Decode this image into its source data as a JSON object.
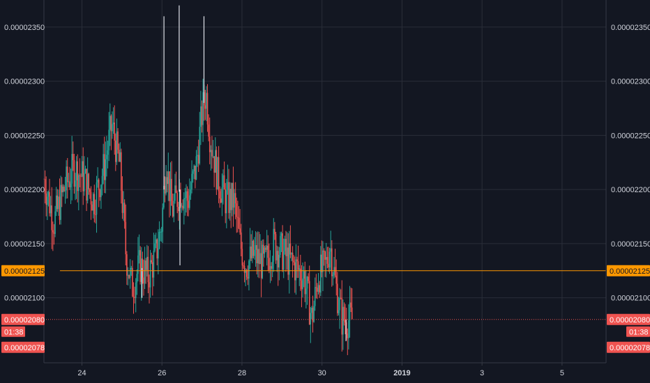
{
  "chart_data": {
    "type": "candlestick",
    "title": "",
    "xlabel": "",
    "ylabel": "",
    "ylim": [
      2.04e-05,
      2.375e-05
    ],
    "y_ticks": [
      "0.00002350",
      "0.00002300",
      "0.00002250",
      "0.00002200",
      "0.00002150",
      "0.00002100"
    ],
    "y_tick_values": [
      2.35e-05,
      2.3e-05,
      2.25e-05,
      2.2e-05,
      2.15e-05,
      2.1e-05
    ],
    "x_ticks": [
      {
        "label": "24",
        "day": 24,
        "bold": false
      },
      {
        "label": "26",
        "day": 26,
        "bold": false
      },
      {
        "label": "28",
        "day": 28,
        "bold": false
      },
      {
        "label": "30",
        "day": 30,
        "bold": false
      },
      {
        "label": "2019",
        "day": 32,
        "bold": true
      },
      {
        "label": "3",
        "day": 34,
        "bold": false
      },
      {
        "label": "5",
        "day": 36,
        "bold": false
      }
    ],
    "xlim_days": [
      23.05,
      37.1
    ],
    "grid": true,
    "colors": {
      "up": "#26a69a",
      "down": "#ef5350",
      "grid": "#2a2e39",
      "hline": "#ff9800",
      "current": "#ef5350"
    },
    "horizontal_line": {
      "value": 2.125e-05,
      "label": "0.00002125",
      "from_day": 23.45
    },
    "current_price": {
      "value": 2.08e-05,
      "label": "0.00002080",
      "countdown": "01:38"
    },
    "low_price": {
      "value": 2.078e-05,
      "label": "0.00002078"
    },
    "price_path": [
      [
        23.05,
        2.21e-05
      ],
      [
        23.3,
        2.17e-05
      ],
      [
        23.55,
        2.2e-05
      ],
      [
        23.8,
        2.22e-05
      ],
      [
        24.05,
        2.21e-05
      ],
      [
        24.3,
        2.19e-05
      ],
      [
        24.55,
        2.22e-05
      ],
      [
        24.75,
        2.26e-05
      ],
      [
        24.95,
        2.22e-05
      ],
      [
        25.1,
        2.14e-05
      ],
      [
        25.25,
        2.11e-05
      ],
      [
        25.45,
        2.13e-05
      ],
      [
        25.65,
        2.12e-05
      ],
      [
        25.85,
        2.14e-05
      ],
      [
        26.0,
        2.17e-05
      ],
      [
        26.1,
        2.23e-05
      ],
      [
        26.25,
        2.18e-05
      ],
      [
        26.45,
        2.2e-05
      ],
      [
        26.65,
        2.19e-05
      ],
      [
        26.85,
        2.22e-05
      ],
      [
        27.0,
        2.27e-05
      ],
      [
        27.1,
        2.29e-05
      ],
      [
        27.2,
        2.25e-05
      ],
      [
        27.4,
        2.21e-05
      ],
      [
        27.6,
        2.19e-05
      ],
      [
        27.8,
        2.19e-05
      ],
      [
        27.95,
        2.15e-05
      ],
      [
        28.1,
        2.13e-05
      ],
      [
        28.3,
        2.14e-05
      ],
      [
        28.55,
        2.13e-05
      ],
      [
        28.8,
        2.15e-05
      ],
      [
        29.05,
        2.14e-05
      ],
      [
        29.3,
        2.13e-05
      ],
      [
        29.55,
        2.12e-05
      ],
      [
        29.75,
        2.08e-05
      ],
      [
        29.9,
        2.12e-05
      ],
      [
        30.1,
        2.13e-05
      ],
      [
        30.2,
        2.15e-05
      ],
      [
        30.35,
        2.11e-05
      ],
      [
        30.5,
        2.08e-05
      ],
      [
        30.65,
        2.08e-05
      ],
      [
        30.75,
        2.08e-05
      ]
    ],
    "spikes": [
      {
        "day": 26.05,
        "high": 2.36e-05
      },
      {
        "day": 26.43,
        "high": 2.37e-05
      },
      {
        "day": 27.05,
        "high": 2.36e-05
      },
      {
        "day": 26.45,
        "low": 2.13e-05
      },
      {
        "day": 25.5,
        "low": 2.1e-05
      },
      {
        "day": 30.6,
        "low": 2.06e-05
      }
    ]
  }
}
